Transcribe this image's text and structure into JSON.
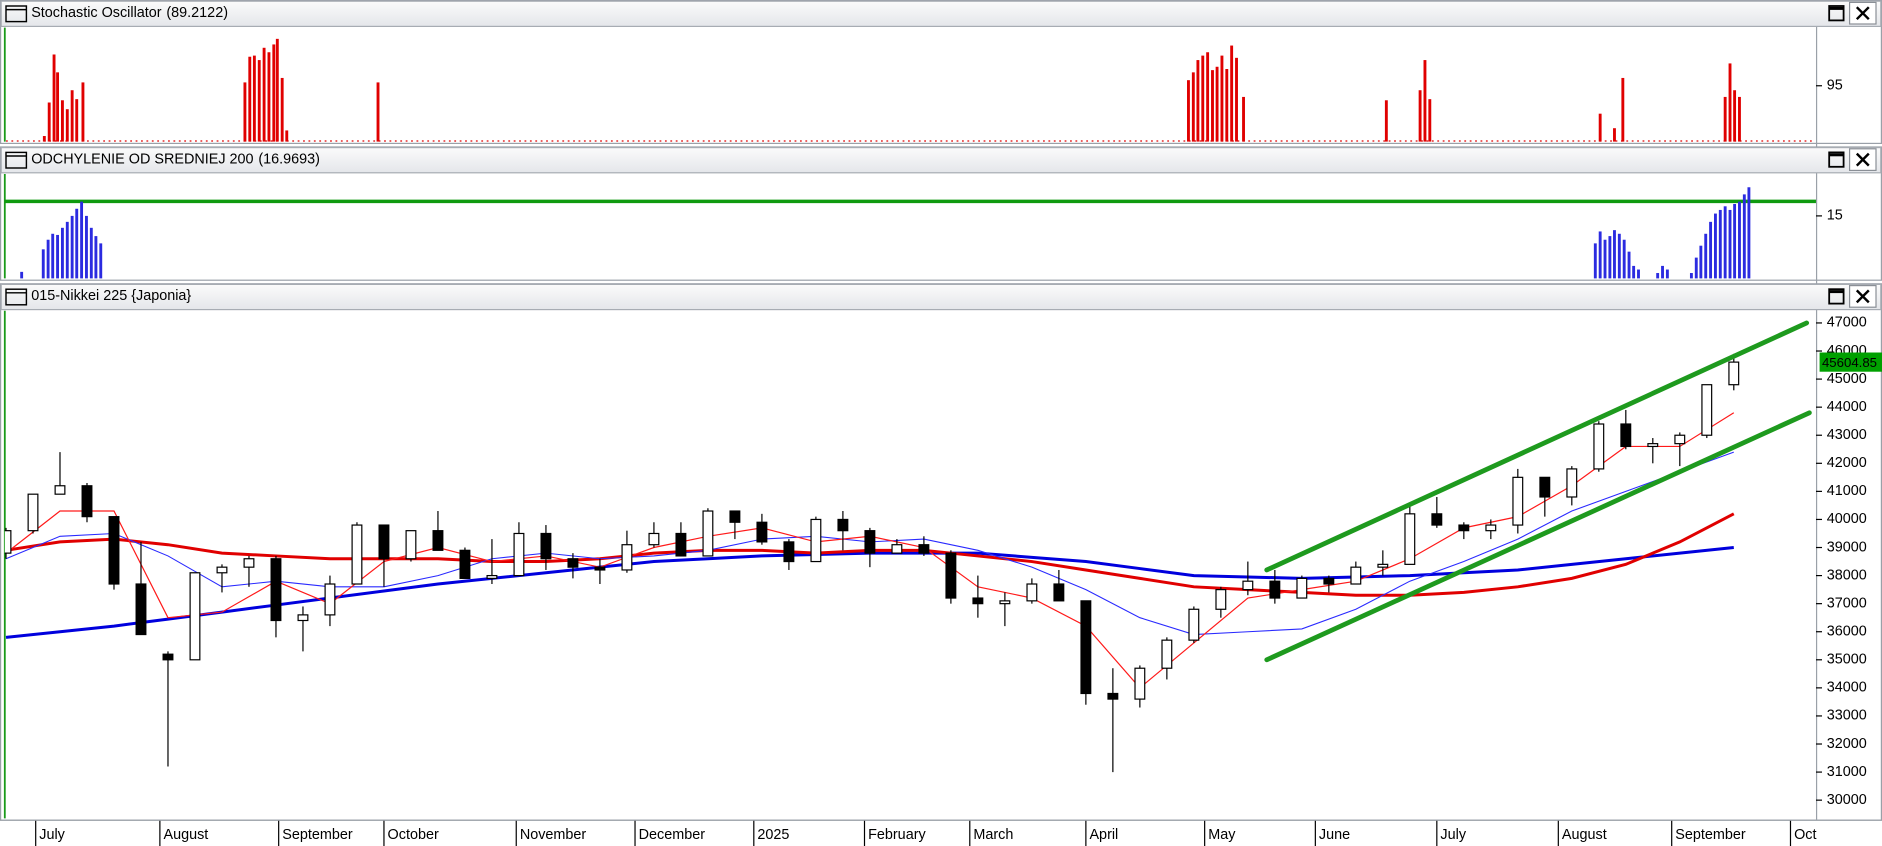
{
  "chart_data": [
    {
      "type": "bar",
      "title": "Stochastic Oscillator",
      "value_label": "(89.2122)",
      "value_label_color": "#e00000",
      "color": "#e00000",
      "xlim": [
        0,
        67
      ],
      "ylim": [
        90,
        100.1
      ],
      "yticks": [
        95
      ],
      "x": [
        1.42,
        1.6,
        1.78,
        1.91,
        2.09,
        2.27,
        2.45,
        2.62,
        2.85,
        8.85,
        9.03,
        9.2,
        9.38,
        9.56,
        9.74,
        9.92,
        10.05,
        10.23,
        10.4,
        13.78,
        43.8,
        43.98,
        44.15,
        44.33,
        44.51,
        44.69,
        44.86,
        45.04,
        45.22,
        45.4,
        45.58,
        45.84,
        51.13,
        52.38,
        52.56,
        52.74,
        59.05,
        59.58,
        59.89,
        63.68,
        63.86,
        64.03,
        64.21
      ],
      "values": [
        90.5,
        93.5,
        97.8,
        96.2,
        93.7,
        92.9,
        94.6,
        93.8,
        95.3,
        95.3,
        97.6,
        97.7,
        97.3,
        98.4,
        98.0,
        98.7,
        99.2,
        95.7,
        91.0,
        95.3,
        95.5,
        96.2,
        97.3,
        97.7,
        98.0,
        96.4,
        96.7,
        97.7,
        96.5,
        98.6,
        97.5,
        94.0,
        93.7,
        94.6,
        97.3,
        93.8,
        92.5,
        91.2,
        95.7,
        94.0,
        97.0,
        94.6,
        94.0
      ]
    },
    {
      "type": "bar",
      "title": "ODCHYLENIE OD SREDNIEJ 200",
      "value_label": "(16.9693)",
      "value_label_color": "#2020e0",
      "color": "#2b2be0",
      "xlim": [
        0,
        67
      ],
      "ylim": [
        10.7,
        17.8
      ],
      "yticks": [
        15
      ],
      "reference_line": 16,
      "reference_color": "#0f9a0f",
      "x": [
        0.58,
        1.38,
        1.56,
        1.73,
        1.91,
        2.09,
        2.27,
        2.45,
        2.62,
        2.8,
        2.98,
        3.16,
        3.33,
        3.51,
        58.87,
        59.05,
        59.23,
        59.41,
        59.58,
        59.76,
        59.94,
        60.12,
        60.29,
        60.47,
        61.18,
        61.36,
        61.54,
        62.43,
        62.61,
        62.78,
        62.96,
        63.14,
        63.32,
        63.5,
        63.68,
        63.86,
        64.03,
        64.21,
        64.39,
        64.56
      ],
      "values": [
        11.15,
        12.7,
        13.36,
        13.77,
        13.69,
        14.18,
        14.59,
        15.0,
        15.49,
        15.98,
        15.0,
        14.18,
        13.61,
        13.11,
        13.11,
        13.93,
        13.36,
        13.61,
        14.02,
        13.77,
        13.36,
        12.54,
        11.56,
        11.31,
        11.07,
        11.56,
        11.31,
        11.07,
        12.13,
        12.95,
        13.77,
        14.59,
        15.16,
        15.41,
        15.66,
        15.41,
        15.82,
        15.98,
        16.48,
        16.97
      ]
    },
    {
      "type": "candlestick",
      "title": "015-Nikkei 225 {Japonia}",
      "xlim": [
        0,
        67
      ],
      "ylim": [
        29350,
        47390
      ],
      "yticks": [
        30000,
        31000,
        32000,
        33000,
        34000,
        35000,
        36000,
        37000,
        38000,
        39000,
        40000,
        41000,
        42000,
        43000,
        44000,
        45000,
        46000,
        47000
      ],
      "xticks": [
        {
          "value": 1.1,
          "label": "July"
        },
        {
          "value": 5.7,
          "label": "August"
        },
        {
          "value": 10.1,
          "label": "September"
        },
        {
          "value": 14.0,
          "label": "October"
        },
        {
          "value": 18.9,
          "label": "November"
        },
        {
          "value": 23.3,
          "label": "December"
        },
        {
          "value": 27.7,
          "label": "2025"
        },
        {
          "value": 31.8,
          "label": "February"
        },
        {
          "value": 35.7,
          "label": "March"
        },
        {
          "value": 40.0,
          "label": "April"
        },
        {
          "value": 44.4,
          "label": "May"
        },
        {
          "value": 48.5,
          "label": "June"
        },
        {
          "value": 53.0,
          "label": "July"
        },
        {
          "value": 57.5,
          "label": "August"
        },
        {
          "value": 61.7,
          "label": "September"
        },
        {
          "value": 66.1,
          "label": "Oct"
        }
      ],
      "x": [
        0,
        1,
        2,
        3,
        4,
        5,
        6,
        7,
        8,
        9,
        10,
        11,
        12,
        13,
        14,
        15,
        16,
        17,
        18,
        19,
        20,
        21,
        22,
        23,
        24,
        25,
        26,
        27,
        28,
        29,
        30,
        31,
        32,
        33,
        34,
        35,
        36,
        37,
        38,
        39,
        40,
        41,
        42,
        43,
        44,
        45,
        46,
        47,
        48,
        49,
        50,
        51,
        52,
        53,
        54,
        55,
        56,
        57,
        58,
        59,
        60,
        61,
        62,
        63,
        64
      ],
      "open": [
        38800,
        39600,
        40900,
        41200,
        40100,
        37700,
        35200,
        35000,
        38100,
        38300,
        38600,
        36400,
        36600,
        37700,
        39800,
        38600,
        39600,
        38900,
        37900,
        38000,
        39500,
        38600,
        38300,
        38200,
        39100,
        39500,
        38700,
        40300,
        39900,
        39200,
        38500,
        40000,
        39600,
        38800,
        39100,
        38800,
        37200,
        37000,
        37100,
        37700,
        37100,
        33800,
        33600,
        34700,
        35700,
        36800,
        37500,
        37800,
        37200,
        37900,
        37700,
        38300,
        38400,
        40200,
        39800,
        39600,
        39800,
        41500,
        40800,
        41800,
        43400,
        42600,
        42700,
        43000,
        44800
      ],
      "high": [
        39700,
        40900,
        42400,
        41300,
        40100,
        39200,
        35300,
        38100,
        38400,
        38700,
        38700,
        36900,
        38000,
        39900,
        39800,
        39600,
        40300,
        39000,
        39300,
        39900,
        39800,
        38800,
        38600,
        39600,
        39900,
        39900,
        40400,
        40300,
        40200,
        39300,
        40100,
        40300,
        39700,
        39300,
        39400,
        38900,
        38000,
        37400,
        37900,
        38200,
        37100,
        34700,
        34800,
        35800,
        36900,
        37600,
        38500,
        38200,
        38000,
        38000,
        38500,
        38900,
        40500,
        40800,
        39900,
        40000,
        41800,
        41500,
        41900,
        43500,
        43900,
        42900,
        43100,
        44800,
        45900
      ],
      "low": [
        38600,
        39500,
        40900,
        39900,
        37500,
        35900,
        31200,
        35000,
        37400,
        37600,
        35800,
        35300,
        36200,
        37700,
        37600,
        38500,
        38900,
        37900,
        37700,
        38000,
        38200,
        37900,
        37700,
        38100,
        39000,
        38700,
        38700,
        39300,
        39100,
        38200,
        38500,
        38900,
        38300,
        38800,
        38700,
        37000,
        36500,
        36200,
        37000,
        37100,
        33400,
        31000,
        33300,
        34300,
        35600,
        36500,
        37300,
        37000,
        37200,
        37400,
        37700,
        38000,
        38400,
        39700,
        39300,
        39300,
        39500,
        40100,
        40500,
        41700,
        42500,
        42000,
        41900,
        42900,
        44600
      ],
      "close": [
        39600,
        40900,
        41200,
        40100,
        37700,
        35900,
        35000,
        38100,
        38300,
        38600,
        36400,
        36600,
        37700,
        39800,
        38600,
        39600,
        38900,
        37900,
        38000,
        39500,
        38600,
        38300,
        38200,
        39100,
        39500,
        38700,
        40300,
        39900,
        39200,
        38500,
        40000,
        39600,
        38800,
        39100,
        38800,
        37200,
        37000,
        37100,
        37700,
        37100,
        33800,
        33600,
        34700,
        35700,
        36800,
        37500,
        37800,
        37200,
        37900,
        37700,
        38300,
        38400,
        40200,
        39800,
        39600,
        39800,
        41500,
        40800,
        41800,
        43400,
        42600,
        42700,
        43000,
        44800,
        45604.85
      ],
      "last_label_color": "#00a000",
      "series": [
        {
          "color": "#0000dd",
          "width": 2.5,
          "x": [
            0,
            2,
            4,
            6,
            8,
            10,
            12,
            14,
            16,
            18,
            20,
            22,
            24,
            26,
            28,
            30,
            32,
            34,
            36,
            38,
            40,
            42,
            44,
            46,
            48,
            50,
            52,
            54,
            56,
            58,
            60,
            62,
            64
          ],
          "values": [
            35800,
            36000,
            36200,
            36450,
            36700,
            36950,
            37200,
            37450,
            37700,
            37900,
            38100,
            38300,
            38500,
            38600,
            38700,
            38750,
            38800,
            38800,
            38800,
            38650,
            38500,
            38250,
            38000,
            37950,
            37900,
            37950,
            38000,
            38100,
            38200,
            38400,
            38600,
            38800,
            39000
          ]
        },
        {
          "color": "#e00000",
          "width": 2.5,
          "x": [
            0,
            2,
            4,
            6,
            8,
            10,
            12,
            14,
            16,
            18,
            20,
            22,
            24,
            26,
            28,
            30,
            32,
            34,
            36,
            38,
            40,
            42,
            44,
            46,
            48,
            50,
            52,
            54,
            56,
            58,
            60,
            62,
            64
          ],
          "values": [
            38900,
            39200,
            39300,
            39100,
            38800,
            38700,
            38600,
            38600,
            38600,
            38500,
            38500,
            38600,
            38800,
            38900,
            38900,
            38800,
            38900,
            38900,
            38700,
            38500,
            38200,
            37900,
            37600,
            37500,
            37400,
            37300,
            37300,
            37400,
            37600,
            37900,
            38400,
            39200,
            40200
          ]
        },
        {
          "color": "#2a2aff",
          "width": 0.9,
          "x": [
            0,
            2,
            4,
            6,
            8,
            10,
            12,
            14,
            16,
            18,
            20,
            22,
            24,
            26,
            28,
            30,
            32,
            34,
            36,
            38,
            40,
            42,
            44,
            46,
            48,
            50,
            52,
            54,
            56,
            58,
            60,
            62,
            64
          ],
          "values": [
            38600,
            39400,
            39500,
            38700,
            37600,
            37800,
            37600,
            37600,
            38000,
            38600,
            38800,
            38600,
            38700,
            38900,
            39300,
            39400,
            39200,
            39300,
            38900,
            38300,
            37500,
            36500,
            35900,
            36000,
            36100,
            36800,
            37800,
            38500,
            39300,
            40300,
            41000,
            41700,
            42400
          ]
        },
        {
          "color": "#ff1a1a",
          "width": 1,
          "x": [
            0,
            2,
            4,
            6,
            8,
            10,
            12,
            14,
            16,
            18,
            20,
            22,
            24,
            26,
            28,
            30,
            32,
            34,
            36,
            38,
            40,
            42,
            44,
            46,
            48,
            50,
            52,
            54,
            56,
            58,
            60,
            62,
            64
          ],
          "values": [
            38800,
            40300,
            40300,
            36500,
            36700,
            37800,
            37000,
            38500,
            39000,
            38500,
            38700,
            38300,
            39000,
            39400,
            39700,
            39200,
            39400,
            39000,
            37600,
            37200,
            36200,
            34000,
            35600,
            37200,
            37500,
            37800,
            38600,
            39700,
            40100,
            41200,
            42600,
            42600,
            43800
          ]
        }
      ],
      "trendlines": [
        {
          "color": "#1e9a1e",
          "width": 4,
          "x": [
            46.7,
            66.7
          ],
          "values": [
            38200,
            47000
          ]
        },
        {
          "color": "#1e9a1e",
          "width": 4,
          "x": [
            46.7,
            66.8
          ],
          "values": [
            35000,
            43800
          ]
        }
      ]
    }
  ]
}
